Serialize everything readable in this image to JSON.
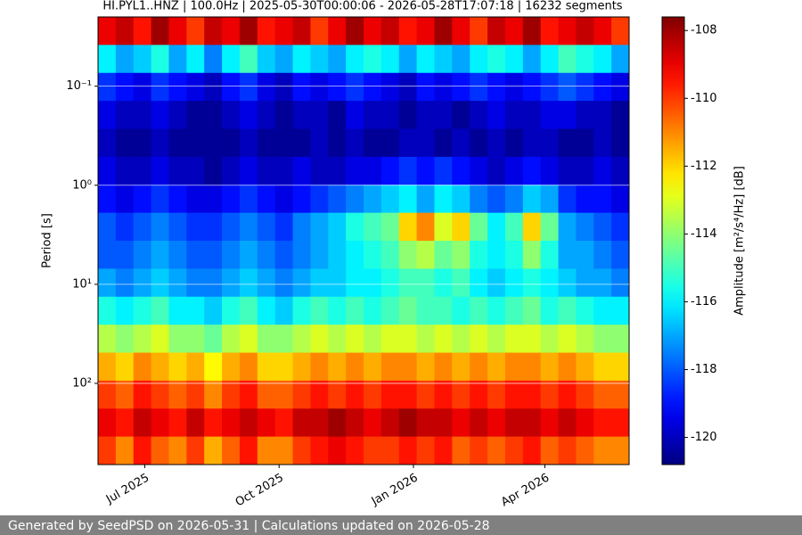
{
  "chart_data": {
    "type": "heatmap",
    "title": "HI.PYL1..HNZ | 100.0Hz | 2025-05-30T00:00:06 - 2026-05-28T17:07:18 | 16232 segments",
    "y_label": "Period [s]",
    "colorbar_label": "Amplitude [m²/s⁴/Hz] [dB]",
    "colormap": "jet",
    "xlim": [
      "2025-05-30T00:00:06",
      "2026-05-28T17:07:18"
    ],
    "xticks": [
      {
        "value": "2025-07",
        "label": "Jul 2025"
      },
      {
        "value": "2025-10",
        "label": "Oct 2025"
      },
      {
        "value": "2026-01",
        "label": "Jan 2026"
      },
      {
        "value": "2026-04",
        "label": "Apr 2026"
      }
    ],
    "ylim": [
      0.02,
      660
    ],
    "y_log": true,
    "y_inverted": true,
    "yticks": [
      {
        "value": 0.1,
        "label": "10⁻¹"
      },
      {
        "value": 1,
        "label": "10⁰"
      },
      {
        "value": 10,
        "label": "10¹"
      },
      {
        "value": 100,
        "label": "10²"
      }
    ],
    "grid": true,
    "zlim": [
      -120.8,
      -107.6
    ],
    "zticks": [
      -120,
      -118,
      -116,
      -114,
      -112,
      -110,
      -108
    ],
    "values": [
      [
        -109,
        -108.5,
        -109.5,
        -108,
        -109,
        -110,
        -108.5,
        -109,
        -108,
        -109.5,
        -109,
        -108.5,
        -110,
        -109,
        -108,
        -109,
        -108.5,
        -109.5,
        -109,
        -108,
        -109,
        -110,
        -108.5,
        -109,
        -108,
        -109.5,
        -109,
        -108.5,
        -109,
        -110
      ],
      [
        -116,
        -117,
        -116.5,
        -115.5,
        -117,
        -116,
        -117.5,
        -116,
        -115,
        -116.5,
        -117,
        -116,
        -116.5,
        -117,
        -116,
        -115.5,
        -116,
        -117,
        -116,
        -116.5,
        -117,
        -116,
        -115.5,
        -116,
        -117,
        -116,
        -115,
        -115.5,
        -116,
        -117
      ],
      [
        -118.5,
        -119,
        -119.5,
        -118.5,
        -119,
        -119.5,
        -120,
        -119,
        -118.5,
        -119.5,
        -120,
        -119,
        -119.5,
        -119,
        -118.5,
        -119,
        -119.5,
        -120,
        -119,
        -119.5,
        -119,
        -118.5,
        -119,
        -119.5,
        -119,
        -118.5,
        -118,
        -118.5,
        -119,
        -119.5
      ],
      [
        -119.5,
        -120,
        -120,
        -119.5,
        -120,
        -120.5,
        -120.5,
        -120,
        -119.5,
        -120,
        -120.5,
        -120,
        -120,
        -120.5,
        -119.5,
        -120,
        -120,
        -120.5,
        -120,
        -120,
        -120.5,
        -120,
        -119.5,
        -120,
        -120,
        -119.5,
        -119.5,
        -120,
        -120,
        -120.5
      ],
      [
        -120,
        -120.5,
        -120.5,
        -120,
        -120.5,
        -120.5,
        -120.5,
        -120.5,
        -120,
        -120.5,
        -120.5,
        -120.5,
        -120,
        -120.5,
        -120,
        -120.5,
        -120.5,
        -120,
        -120,
        -120.5,
        -120,
        -120.5,
        -120,
        -120.5,
        -120,
        -120,
        -120.5,
        -120.5,
        -120,
        -120.5
      ],
      [
        -119.5,
        -120,
        -120,
        -119.5,
        -120,
        -120,
        -120.5,
        -120,
        -119.5,
        -120,
        -120,
        -119.5,
        -120,
        -120,
        -119.5,
        -119.5,
        -119,
        -118.5,
        -119,
        -118.5,
        -119,
        -119.5,
        -120,
        -119.5,
        -119,
        -119.5,
        -120,
        -120,
        -119.5,
        -120
      ],
      [
        -119,
        -119.5,
        -119,
        -118.5,
        -119,
        -119.5,
        -119.5,
        -119,
        -118.5,
        -119,
        -119.5,
        -119,
        -118.5,
        -118,
        -117.5,
        -117,
        -116.5,
        -116,
        -117,
        -116,
        -116.5,
        -117.5,
        -118,
        -117.5,
        -116.5,
        -117,
        -118.5,
        -119,
        -119,
        -119.5
      ],
      [
        -118,
        -118.5,
        -118,
        -117.5,
        -118,
        -118.5,
        -118.5,
        -118,
        -117.5,
        -118,
        -118.5,
        -117.5,
        -117,
        -116.5,
        -115.5,
        -115,
        -114.5,
        -112,
        -111,
        -113,
        -112,
        -114.5,
        -116,
        -115,
        -112,
        -114.5,
        -117,
        -117.5,
        -118,
        -118.5
      ],
      [
        -118,
        -118,
        -117.5,
        -117,
        -117.5,
        -118,
        -118,
        -117.5,
        -117,
        -117.5,
        -118,
        -117.5,
        -117,
        -116.5,
        -116,
        -115.5,
        -115,
        -114,
        -113.5,
        -114.5,
        -114,
        -115.5,
        -116,
        -115.5,
        -114,
        -115.5,
        -117,
        -117,
        -117.5,
        -118
      ],
      [
        -117,
        -117.5,
        -117,
        -116.5,
        -117,
        -117.5,
        -117.5,
        -117,
        -116.5,
        -117,
        -117.5,
        -117,
        -116.5,
        -116.5,
        -116,
        -116,
        -115.5,
        -115,
        -115,
        -115.5,
        -115,
        -116,
        -116.5,
        -116,
        -115.5,
        -116,
        -116.5,
        -117,
        -117,
        -117.5
      ],
      [
        -115.5,
        -116,
        -115.5,
        -115,
        -116,
        -116,
        -116.5,
        -115.5,
        -115,
        -116,
        -116.5,
        -115.5,
        -115,
        -115.5,
        -115,
        -115.5,
        -115,
        -114.5,
        -115,
        -115,
        -115.5,
        -115,
        -115.5,
        -115,
        -114.5,
        -115.5,
        -115,
        -115.5,
        -116,
        -116
      ],
      [
        -113.5,
        -114,
        -113.5,
        -113,
        -114,
        -114,
        -114.5,
        -113.5,
        -113,
        -114,
        -114,
        -113.5,
        -113,
        -113.5,
        -113,
        -113.5,
        -113,
        -113,
        -113.5,
        -113,
        -113.5,
        -113,
        -113.5,
        -113,
        -113,
        -113.5,
        -113,
        -113.5,
        -114,
        -114
      ],
      [
        -111.5,
        -112,
        -111,
        -111.5,
        -112,
        -111.5,
        -112.5,
        -111.5,
        -111,
        -112,
        -112,
        -111.5,
        -111,
        -111.5,
        -111,
        -111.5,
        -111,
        -111,
        -111.5,
        -111,
        -111.5,
        -111,
        -111.5,
        -111,
        -111,
        -111.5,
        -111,
        -111.5,
        -112,
        -112
      ],
      [
        -110,
        -110.5,
        -109.5,
        -110,
        -110.5,
        -110,
        -111,
        -110,
        -109.5,
        -110.5,
        -110.5,
        -110,
        -109.5,
        -110,
        -109.5,
        -110,
        -109.5,
        -109.5,
        -110,
        -109.5,
        -110,
        -109.5,
        -110,
        -109.5,
        -109.5,
        -110,
        -109.5,
        -110,
        -110.5,
        -110.5
      ],
      [
        -109,
        -109.5,
        -108.5,
        -109,
        -109.5,
        -108.5,
        -109.5,
        -109,
        -108.5,
        -109,
        -109.5,
        -108.5,
        -108.5,
        -108,
        -108.5,
        -109,
        -108.5,
        -108,
        -108.5,
        -108.5,
        -109,
        -108.5,
        -109,
        -108.5,
        -108.5,
        -109,
        -108.5,
        -109,
        -109.5,
        -109.5
      ],
      [
        -110,
        -111,
        -109.5,
        -110.5,
        -111,
        -110,
        -111.5,
        -110.5,
        -109.5,
        -111,
        -111,
        -110,
        -109.5,
        -109,
        -109.5,
        -110,
        -110,
        -109.5,
        -110,
        -109.5,
        -110.5,
        -110,
        -110.5,
        -110,
        -109.5,
        -110.5,
        -110,
        -110.5,
        -111,
        -111
      ]
    ]
  },
  "footer": {
    "text": "Generated by SeedPSD on 2026-05-31 | Calculations updated on 2026-05-28"
  }
}
